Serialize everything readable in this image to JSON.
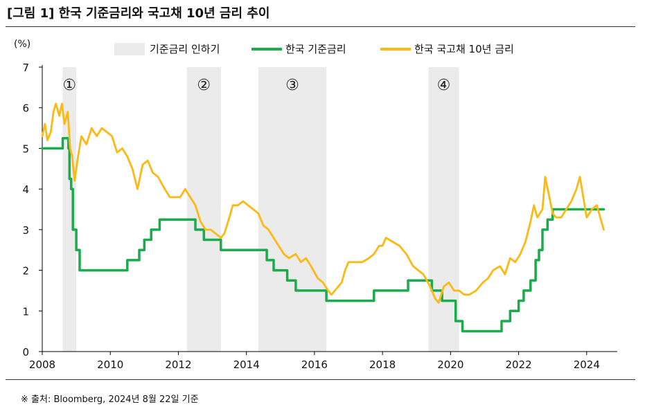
{
  "figure_title": "[그림 1] 한국 기준금리와 국고채 10년 금리 추이",
  "source_note": "※ 출처: Bloomberg, 2024년 8월 22일 기준",
  "colors": {
    "base_rate": "#1aab4b",
    "bond_yield": "#fdb913",
    "shade": "#ebebeb",
    "axis": "#000000"
  },
  "chart_data": {
    "type": "line",
    "title": "",
    "ylabel": "(%)",
    "xlabel": "",
    "ylim": [
      0,
      7
    ],
    "xlim": [
      2008,
      2024.9
    ],
    "yticks": [
      0,
      1,
      2,
      3,
      4,
      5,
      6,
      7
    ],
    "xticks": [
      2008,
      2010,
      2012,
      2014,
      2016,
      2018,
      2020,
      2022,
      2024
    ],
    "legend": [
      {
        "label": "기준금리 인하기",
        "kind": "shade"
      },
      {
        "label": "한국 기준금리",
        "kind": "base_rate"
      },
      {
        "label": "한국 국고채 10년 금리",
        "kind": "bond_yield"
      }
    ],
    "shaded_periods": [
      {
        "label": "①",
        "start": 2008.6,
        "end": 2009.0
      },
      {
        "label": "②",
        "start": 2012.25,
        "end": 2013.25
      },
      {
        "label": "③",
        "start": 2014.35,
        "end": 2016.35
      },
      {
        "label": "④",
        "start": 2019.35,
        "end": 2020.25
      }
    ],
    "series": [
      {
        "name": "한국 기준금리",
        "step": true,
        "points": [
          [
            2008.0,
            5.0
          ],
          [
            2008.6,
            5.25
          ],
          [
            2008.77,
            5.0
          ],
          [
            2008.8,
            4.25
          ],
          [
            2008.85,
            4.0
          ],
          [
            2008.9,
            3.0
          ],
          [
            2009.0,
            2.5
          ],
          [
            2009.1,
            2.0
          ],
          [
            2010.5,
            2.25
          ],
          [
            2010.85,
            2.5
          ],
          [
            2011.0,
            2.75
          ],
          [
            2011.2,
            3.0
          ],
          [
            2011.45,
            3.25
          ],
          [
            2012.5,
            3.0
          ],
          [
            2012.75,
            2.75
          ],
          [
            2013.25,
            2.5
          ],
          [
            2014.6,
            2.25
          ],
          [
            2014.8,
            2.0
          ],
          [
            2015.2,
            1.75
          ],
          [
            2015.45,
            1.5
          ],
          [
            2016.35,
            1.25
          ],
          [
            2017.75,
            1.5
          ],
          [
            2018.75,
            1.75
          ],
          [
            2019.45,
            1.5
          ],
          [
            2019.75,
            1.25
          ],
          [
            2020.0,
            1.25
          ],
          [
            2020.15,
            0.75
          ],
          [
            2020.35,
            0.5
          ],
          [
            2021.5,
            0.75
          ],
          [
            2021.75,
            1.0
          ],
          [
            2022.0,
            1.25
          ],
          [
            2022.15,
            1.5
          ],
          [
            2022.35,
            1.75
          ],
          [
            2022.5,
            2.25
          ],
          [
            2022.6,
            2.5
          ],
          [
            2022.7,
            3.0
          ],
          [
            2022.85,
            3.25
          ],
          [
            2023.0,
            3.5
          ],
          [
            2024.5,
            3.5
          ]
        ]
      },
      {
        "name": "한국 국고채 10년 금리",
        "step": false,
        "points": [
          [
            2008.0,
            5.3
          ],
          [
            2008.08,
            5.6
          ],
          [
            2008.15,
            5.2
          ],
          [
            2008.25,
            5.4
          ],
          [
            2008.33,
            5.9
          ],
          [
            2008.4,
            6.1
          ],
          [
            2008.5,
            5.8
          ],
          [
            2008.58,
            6.1
          ],
          [
            2008.65,
            5.6
          ],
          [
            2008.75,
            5.9
          ],
          [
            2008.82,
            5.0
          ],
          [
            2008.88,
            4.8
          ],
          [
            2008.95,
            4.2
          ],
          [
            2009.05,
            4.8
          ],
          [
            2009.15,
            5.3
          ],
          [
            2009.3,
            5.1
          ],
          [
            2009.45,
            5.5
          ],
          [
            2009.6,
            5.3
          ],
          [
            2009.75,
            5.5
          ],
          [
            2009.9,
            5.4
          ],
          [
            2010.05,
            5.3
          ],
          [
            2010.2,
            4.9
          ],
          [
            2010.35,
            5.0
          ],
          [
            2010.5,
            4.8
          ],
          [
            2010.65,
            4.5
          ],
          [
            2010.8,
            4.0
          ],
          [
            2010.95,
            4.6
          ],
          [
            2011.1,
            4.7
          ],
          [
            2011.25,
            4.4
          ],
          [
            2011.4,
            4.3
          ],
          [
            2011.6,
            4.0
          ],
          [
            2011.75,
            3.8
          ],
          [
            2011.9,
            3.8
          ],
          [
            2012.05,
            3.8
          ],
          [
            2012.2,
            4.0
          ],
          [
            2012.35,
            3.8
          ],
          [
            2012.5,
            3.6
          ],
          [
            2012.65,
            3.2
          ],
          [
            2012.8,
            3.0
          ],
          [
            2012.95,
            3.0
          ],
          [
            2013.1,
            2.9
          ],
          [
            2013.25,
            2.8
          ],
          [
            2013.35,
            2.9
          ],
          [
            2013.5,
            3.3
          ],
          [
            2013.6,
            3.6
          ],
          [
            2013.75,
            3.6
          ],
          [
            2013.9,
            3.7
          ],
          [
            2014.05,
            3.6
          ],
          [
            2014.2,
            3.5
          ],
          [
            2014.35,
            3.4
          ],
          [
            2014.5,
            3.1
          ],
          [
            2014.65,
            3.0
          ],
          [
            2014.8,
            2.8
          ],
          [
            2014.95,
            2.6
          ],
          [
            2015.1,
            2.4
          ],
          [
            2015.25,
            2.3
          ],
          [
            2015.45,
            2.4
          ],
          [
            2015.6,
            2.2
          ],
          [
            2015.75,
            2.3
          ],
          [
            2015.9,
            2.1
          ],
          [
            2016.1,
            1.8
          ],
          [
            2016.25,
            1.7
          ],
          [
            2016.4,
            1.5
          ],
          [
            2016.5,
            1.4
          ],
          [
            2016.6,
            1.5
          ],
          [
            2016.8,
            1.7
          ],
          [
            2016.9,
            2.0
          ],
          [
            2017.0,
            2.2
          ],
          [
            2017.2,
            2.2
          ],
          [
            2017.4,
            2.2
          ],
          [
            2017.6,
            2.3
          ],
          [
            2017.75,
            2.4
          ],
          [
            2017.9,
            2.6
          ],
          [
            2018.0,
            2.6
          ],
          [
            2018.1,
            2.8
          ],
          [
            2018.3,
            2.7
          ],
          [
            2018.5,
            2.6
          ],
          [
            2018.7,
            2.4
          ],
          [
            2018.9,
            2.1
          ],
          [
            2019.05,
            2.0
          ],
          [
            2019.2,
            1.9
          ],
          [
            2019.4,
            1.6
          ],
          [
            2019.55,
            1.3
          ],
          [
            2019.65,
            1.2
          ],
          [
            2019.8,
            1.6
          ],
          [
            2019.95,
            1.7
          ],
          [
            2020.1,
            1.5
          ],
          [
            2020.25,
            1.5
          ],
          [
            2020.4,
            1.4
          ],
          [
            2020.55,
            1.4
          ],
          [
            2020.75,
            1.5
          ],
          [
            2020.95,
            1.7
          ],
          [
            2021.1,
            1.8
          ],
          [
            2021.25,
            2.0
          ],
          [
            2021.45,
            2.1
          ],
          [
            2021.6,
            1.9
          ],
          [
            2021.75,
            2.3
          ],
          [
            2021.9,
            2.2
          ],
          [
            2022.05,
            2.4
          ],
          [
            2022.2,
            2.7
          ],
          [
            2022.35,
            3.2
          ],
          [
            2022.45,
            3.6
          ],
          [
            2022.55,
            3.3
          ],
          [
            2022.7,
            3.5
          ],
          [
            2022.78,
            4.3
          ],
          [
            2022.88,
            3.9
          ],
          [
            2023.0,
            3.4
          ],
          [
            2023.1,
            3.3
          ],
          [
            2023.25,
            3.3
          ],
          [
            2023.4,
            3.5
          ],
          [
            2023.55,
            3.7
          ],
          [
            2023.7,
            4.0
          ],
          [
            2023.8,
            4.3
          ],
          [
            2023.9,
            3.8
          ],
          [
            2024.0,
            3.3
          ],
          [
            2024.15,
            3.5
          ],
          [
            2024.3,
            3.6
          ],
          [
            2024.4,
            3.3
          ],
          [
            2024.5,
            3.0
          ]
        ]
      }
    ]
  }
}
